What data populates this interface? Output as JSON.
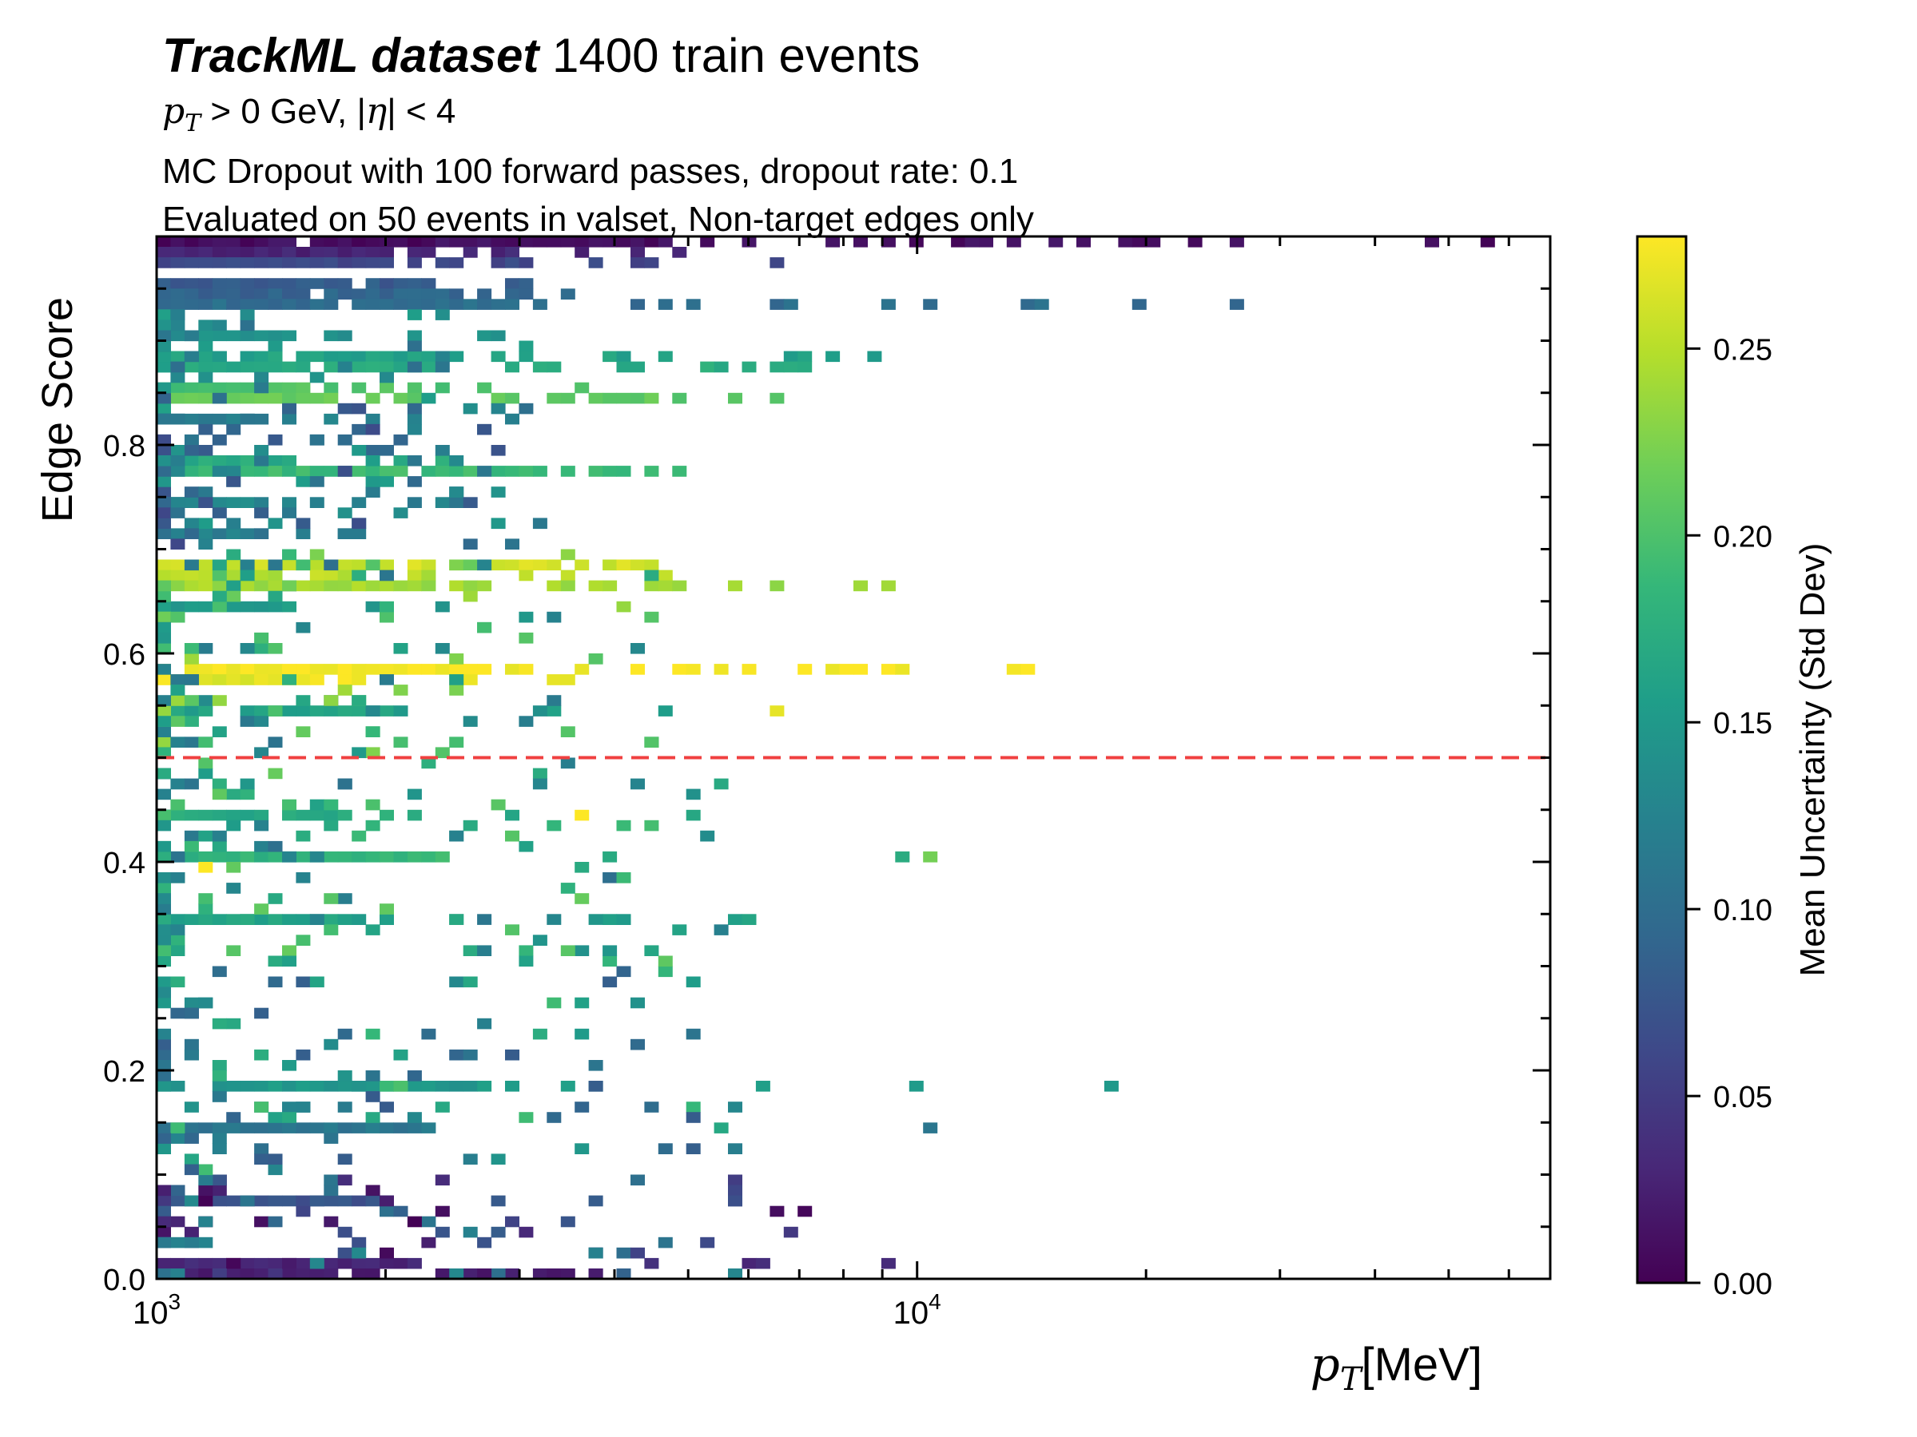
{
  "header": {
    "title_bold": "TrackML dataset",
    "title_rest": " 1400 train events",
    "cut_pt_var": "p",
    "cut_pt_sub": "T",
    "cut_pt_rest": " > 0 GeV, |",
    "cut_eta_var": "η",
    "cut_eta_rest": "| < 4",
    "method_line": "MC Dropout with 100 forward passes, dropout rate: 0.1",
    "eval_line": "Evaluated on 50 events in valset, Non-target edges only"
  },
  "chart_data": {
    "type": "heatmap",
    "xlabel": "[MeV]",
    "xlabel_var": "p",
    "xlabel_sub": "T",
    "ylabel": "Edge Score",
    "colorbar_label": "Mean Uncertainty (Std Dev)",
    "colormap": "viridis",
    "colors": [
      "#440154",
      "#482878",
      "#3e4989",
      "#31688e",
      "#26828e",
      "#1f9e89",
      "#35b779",
      "#6ece58",
      "#b5de2b",
      "#fde725"
    ],
    "xscale": "log",
    "xlim": [
      1000,
      68000
    ],
    "ylim": [
      0,
      1
    ],
    "clim": [
      0,
      0.28
    ],
    "x_major_ticks": [
      {
        "value": 1000,
        "base": "10",
        "exp": "3"
      },
      {
        "value": 10000,
        "base": "10",
        "exp": "4"
      }
    ],
    "y_ticks": [
      {
        "value": 0.0,
        "label": "0.0"
      },
      {
        "value": 0.2,
        "label": "0.2"
      },
      {
        "value": 0.4,
        "label": "0.4"
      },
      {
        "value": 0.6,
        "label": "0.6"
      },
      {
        "value": 0.8,
        "label": "0.8"
      }
    ],
    "colorbar_ticks": [
      {
        "value": 0.0,
        "label": "0.00"
      },
      {
        "value": 0.05,
        "label": "0.05"
      },
      {
        "value": 0.1,
        "label": "0.10"
      },
      {
        "value": 0.15,
        "label": "0.15"
      },
      {
        "value": 0.2,
        "label": "0.20"
      },
      {
        "value": 0.25,
        "label": "0.25"
      }
    ],
    "threshold": {
      "value": 0.5,
      "color": "#f04040",
      "style": "dashed"
    },
    "rows": [
      {
        "y": 0.995,
        "c": 0.01,
        "x_min": 1000,
        "x_max": 66000,
        "fill": 0.55
      },
      {
        "y": 0.985,
        "c": 0.03,
        "x_min": 1000,
        "x_max": 5000,
        "fill": 0.6
      },
      {
        "y": 0.975,
        "c": 0.06,
        "x_min": 1000,
        "x_max": 7000,
        "fill": 0.4
      },
      {
        "y": 0.955,
        "c": 0.08,
        "x_min": 1000,
        "x_max": 3500,
        "fill": 0.85
      },
      {
        "y": 0.945,
        "c": 0.09,
        "x_min": 1000,
        "x_max": 3600,
        "fill": 0.9
      },
      {
        "y": 0.935,
        "c": 0.1,
        "x_min": 1000,
        "x_max": 27000,
        "fill": 0.35
      },
      {
        "y": 0.905,
        "c": 0.14,
        "x_min": 1000,
        "x_max": 3000,
        "fill": 0.45
      },
      {
        "y": 0.885,
        "c": 0.16,
        "x_min": 1000,
        "x_max": 11000,
        "fill": 0.6
      },
      {
        "y": 0.875,
        "c": 0.17,
        "x_min": 1000,
        "x_max": 8500,
        "fill": 0.6
      },
      {
        "y": 0.855,
        "c": 0.2,
        "x_min": 1000,
        "x_max": 3700,
        "fill": 0.45
      },
      {
        "y": 0.845,
        "c": 0.21,
        "x_min": 1000,
        "x_max": 6600,
        "fill": 0.65
      },
      {
        "y": 0.825,
        "c": 0.12,
        "x_min": 1000,
        "x_max": 2600,
        "fill": 0.35
      },
      {
        "y": 0.785,
        "c": 0.17,
        "x_min": 1000,
        "x_max": 3000,
        "fill": 0.4
      },
      {
        "y": 0.775,
        "c": 0.19,
        "x_min": 1000,
        "x_max": 5000,
        "fill": 0.7
      },
      {
        "y": 0.745,
        "c": 0.13,
        "x_min": 1000,
        "x_max": 2500,
        "fill": 0.4
      },
      {
        "y": 0.715,
        "c": 0.12,
        "x_min": 1000,
        "x_max": 2600,
        "fill": 0.35
      },
      {
        "y": 0.685,
        "c": 0.26,
        "x_min": 1000,
        "x_max": 4700,
        "fill": 0.85
      },
      {
        "y": 0.675,
        "c": 0.25,
        "x_min": 1000,
        "x_max": 4800,
        "fill": 0.6
      },
      {
        "y": 0.665,
        "c": 0.24,
        "x_min": 1000,
        "x_max": 9200,
        "fill": 0.6
      },
      {
        "y": 0.645,
        "c": 0.15,
        "x_min": 1000,
        "x_max": 3100,
        "fill": 0.3
      },
      {
        "y": 0.585,
        "c": 0.28,
        "x_min": 1000,
        "x_max": 14000,
        "fill": 0.75
      },
      {
        "y": 0.575,
        "c": 0.27,
        "x_min": 1000,
        "x_max": 3500,
        "fill": 0.5
      },
      {
        "y": 0.545,
        "c": 0.16,
        "x_min": 1000,
        "x_max": 6000,
        "fill": 0.25
      },
      {
        "y": 0.445,
        "c": 0.17,
        "x_min": 1000,
        "x_max": 5500,
        "fill": 0.2
      },
      {
        "y": 0.405,
        "c": 0.18,
        "x_min": 1000,
        "x_max": 10500,
        "fill": 0.15
      },
      {
        "y": 0.345,
        "c": 0.16,
        "x_min": 1000,
        "x_max": 6000,
        "fill": 0.15
      },
      {
        "y": 0.185,
        "c": 0.15,
        "x_min": 1000,
        "x_max": 18000,
        "fill": 0.12
      },
      {
        "y": 0.145,
        "c": 0.11,
        "x_min": 1000,
        "x_max": 10500,
        "fill": 0.12
      },
      {
        "y": 0.075,
        "c": 0.07,
        "x_min": 1000,
        "x_max": 7500,
        "fill": 0.12
      },
      {
        "y": 0.015,
        "c": 0.03,
        "x_min": 1000,
        "x_max": 9000,
        "fill": 0.2
      },
      {
        "y": 0.005,
        "c": 0.02,
        "x_min": 1000,
        "x_max": 4200,
        "fill": 0.35
      }
    ],
    "scatter_zones": [
      {
        "y_min": 0.0,
        "y_max": 0.1,
        "x_max": 7500,
        "c_min": 0.0,
        "c_max": 0.14,
        "count": 95
      },
      {
        "y_min": 0.1,
        "y_max": 0.3,
        "x_max": 6000,
        "c_min": 0.08,
        "c_max": 0.2,
        "count": 110
      },
      {
        "y_min": 0.3,
        "y_max": 0.5,
        "x_max": 5500,
        "c_min": 0.1,
        "c_max": 0.22,
        "count": 130
      },
      {
        "y_min": 0.5,
        "y_max": 0.7,
        "x_max": 4500,
        "c_min": 0.1,
        "c_max": 0.24,
        "count": 120
      },
      {
        "y_min": 0.7,
        "y_max": 0.85,
        "x_max": 3200,
        "c_min": 0.06,
        "c_max": 0.16,
        "count": 110
      },
      {
        "y_min": 0.85,
        "y_max": 0.93,
        "x_max": 3000,
        "c_min": 0.1,
        "c_max": 0.16,
        "count": 40
      }
    ],
    "singles": [
      {
        "x": 10400,
        "y": 0.405,
        "c": 0.22
      },
      {
        "x": 18000,
        "y": 0.185,
        "c": 0.15
      },
      {
        "x": 10500,
        "y": 0.145,
        "c": 0.11
      },
      {
        "x": 6500,
        "y": 0.545,
        "c": 0.27
      },
      {
        "x": 8600,
        "y": 0.585,
        "c": 0.28
      },
      {
        "x": 14000,
        "y": 0.585,
        "c": 0.28
      },
      {
        "x": 9200,
        "y": 0.665,
        "c": 0.24
      },
      {
        "x": 3550,
        "y": 0.445,
        "c": 0.28
      },
      {
        "x": 1150,
        "y": 0.395,
        "c": 0.28
      }
    ]
  }
}
